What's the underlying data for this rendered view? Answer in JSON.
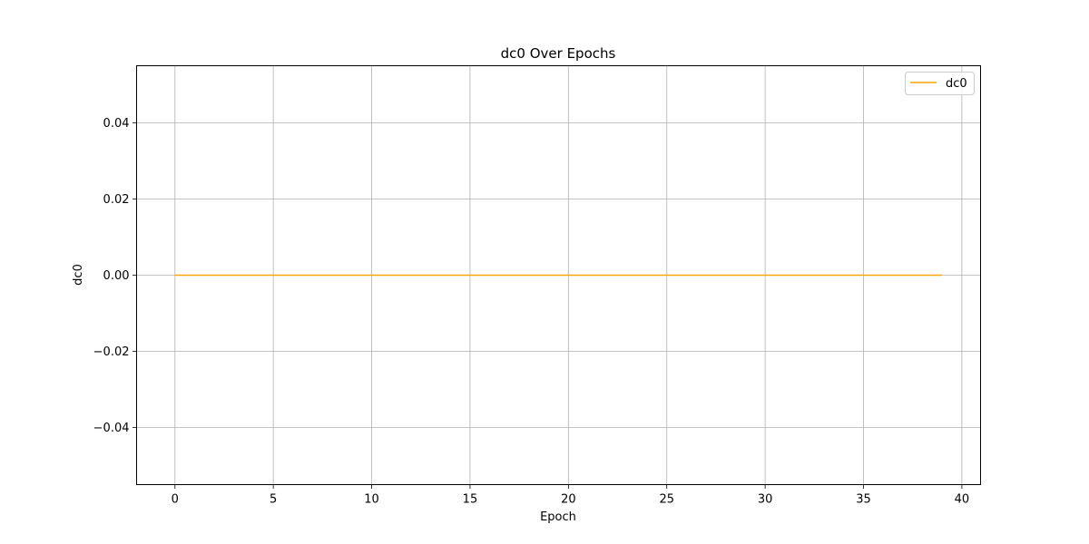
{
  "chart_data": {
    "type": "line",
    "title": "dc0 Over Epochs",
    "xlabel": "Epoch",
    "ylabel": "dc0",
    "xlim": [
      -1.95,
      40.95
    ],
    "ylim": [
      -0.055,
      0.055
    ],
    "x_ticks": [
      0,
      5,
      10,
      15,
      20,
      25,
      30,
      35,
      40
    ],
    "x_tick_labels": [
      "0",
      "5",
      "10",
      "15",
      "20",
      "25",
      "30",
      "35",
      "40"
    ],
    "y_ticks": [
      -0.04,
      -0.02,
      0.0,
      0.02,
      0.04
    ],
    "y_tick_labels": [
      "−0.04",
      "−0.02",
      "0.00",
      "0.02",
      "0.04"
    ],
    "grid": true,
    "legend_position": "top-right",
    "series": [
      {
        "name": "dc0",
        "color": "#ffa500",
        "x": [
          0,
          1,
          2,
          3,
          4,
          5,
          6,
          7,
          8,
          9,
          10,
          11,
          12,
          13,
          14,
          15,
          16,
          17,
          18,
          19,
          20,
          21,
          22,
          23,
          24,
          25,
          26,
          27,
          28,
          29,
          30,
          31,
          32,
          33,
          34,
          35,
          36,
          37,
          38,
          39
        ],
        "y": [
          0,
          0,
          0,
          0,
          0,
          0,
          0,
          0,
          0,
          0,
          0,
          0,
          0,
          0,
          0,
          0,
          0,
          0,
          0,
          0,
          0,
          0,
          0,
          0,
          0,
          0,
          0,
          0,
          0,
          0,
          0,
          0,
          0,
          0,
          0,
          0,
          0,
          0,
          0,
          0
        ]
      }
    ]
  }
}
